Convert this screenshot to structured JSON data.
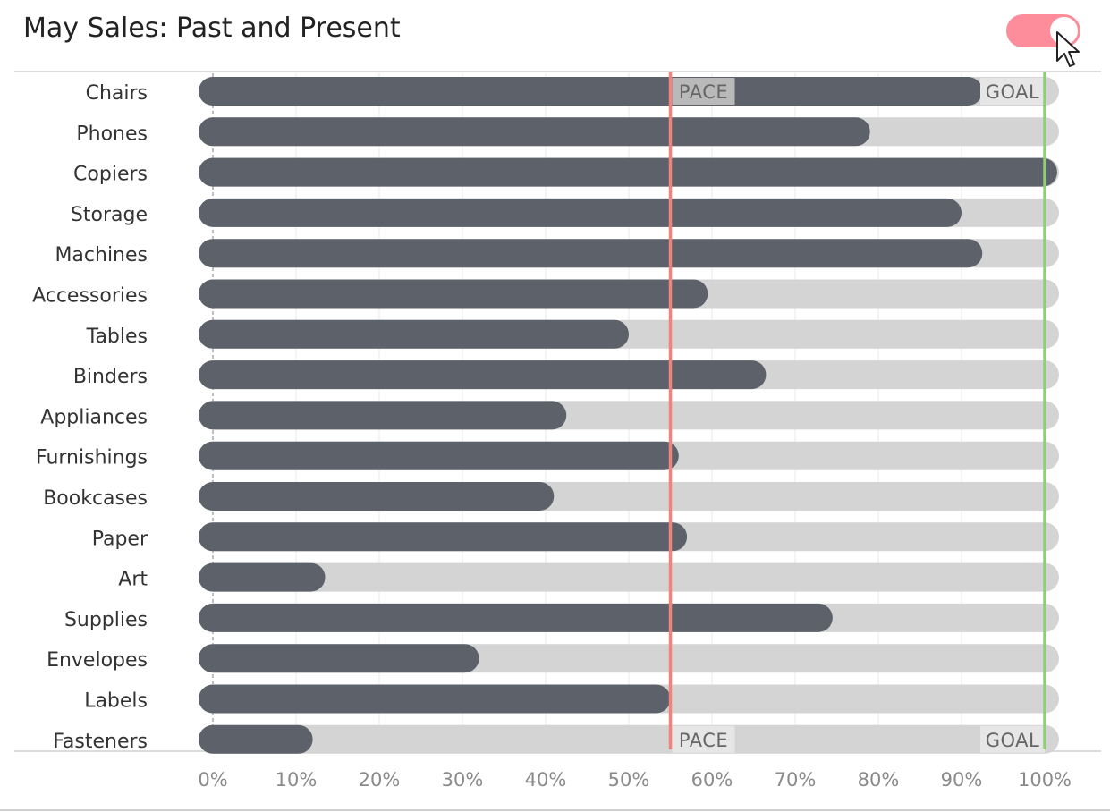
{
  "title": "May Sales: Past and Present",
  "toggle": {
    "state": "on",
    "color": "#fd8d9b"
  },
  "colors": {
    "bar": "#5c616a",
    "track": "#d4d4d4",
    "pace_line": "#f0837b",
    "goal_line": "#8fce79",
    "label_box": "#b9b9b9",
    "label_box_light": "#e6e6e6"
  },
  "chart_data": {
    "type": "bar",
    "orientation": "horizontal",
    "categories": [
      "Chairs",
      "Phones",
      "Copiers",
      "Storage",
      "Machines",
      "Accessories",
      "Tables",
      "Binders",
      "Appliances",
      "Furnishings",
      "Bookcases",
      "Paper",
      "Art",
      "Supplies",
      "Envelopes",
      "Labels",
      "Fasteners"
    ],
    "values": [
      92.5,
      79,
      101.5,
      90,
      92.5,
      59.5,
      50,
      66.5,
      42.5,
      56,
      41,
      57,
      13.5,
      74.5,
      32,
      55,
      12
    ],
    "xlim": [
      0,
      100
    ],
    "x_ticks": [
      "0%",
      "10%",
      "20%",
      "30%",
      "40%",
      "50%",
      "60%",
      "70%",
      "80%",
      "90%",
      "100%"
    ],
    "reference_lines": [
      {
        "label": "PACE",
        "value": 55
      },
      {
        "label": "GOAL",
        "value": 100
      }
    ],
    "grid": true,
    "xlabel": "",
    "ylabel": ""
  }
}
